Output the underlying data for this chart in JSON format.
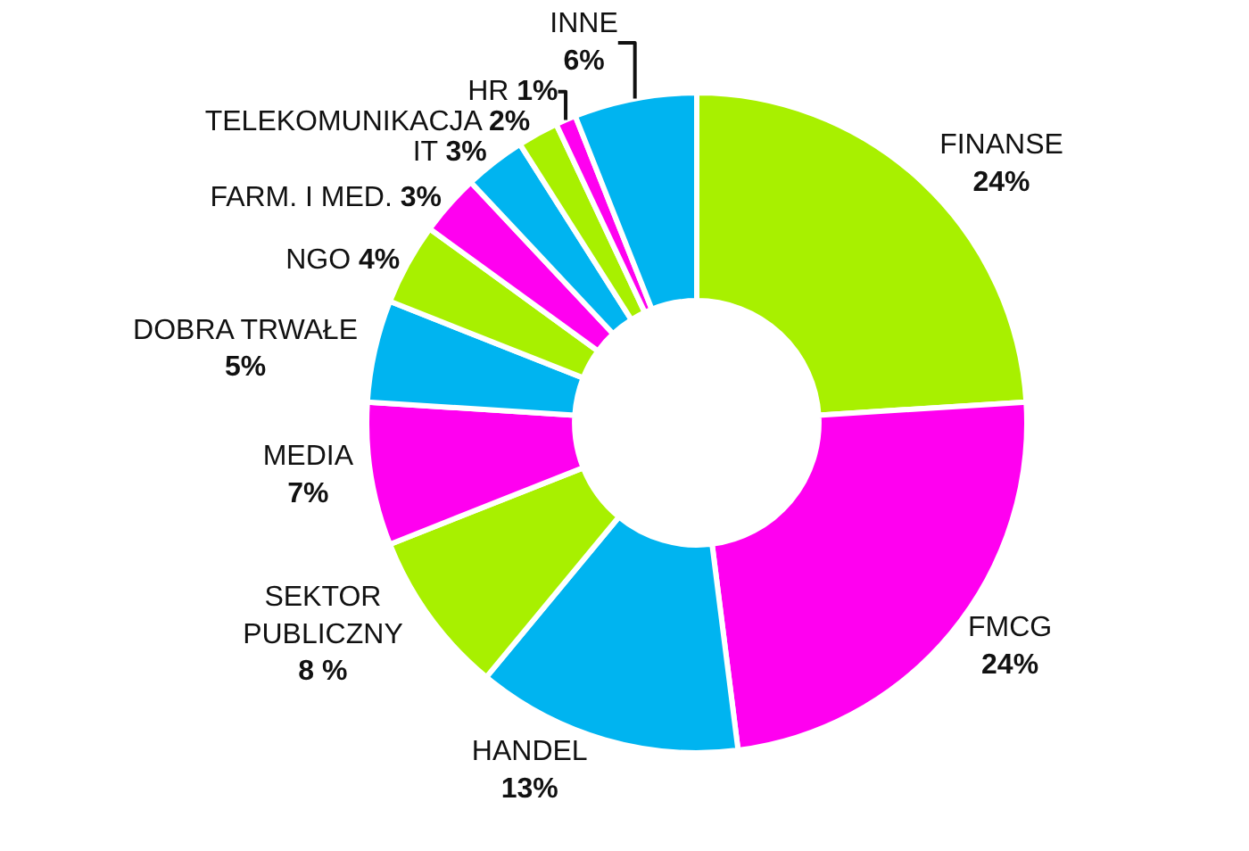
{
  "chart_data": {
    "type": "donut",
    "categories": [
      "FINANSE",
      "FMCG",
      "HANDEL",
      "SEKTOR PUBLICZNY",
      "MEDIA",
      "DOBRA TRWAŁE",
      "NGO",
      "FARM. I MED.",
      "IT",
      "TELEKOMUNIKACJA",
      "HR",
      "INNE"
    ],
    "values": [
      24,
      24,
      13,
      8,
      7,
      5,
      4,
      3,
      3,
      2,
      1,
      6
    ],
    "value_labels": [
      "24%",
      "24%",
      "13%",
      "8 %",
      "7%",
      "5%",
      "4%",
      "3%",
      "3%",
      "2%",
      "1%",
      "6%"
    ],
    "colors": [
      "#a8f000",
      "#ff00f0",
      "#00b4f0",
      "#a8f000",
      "#ff00f0",
      "#00b4f0",
      "#a8f000",
      "#ff00f0",
      "#00b4f0",
      "#a8f000",
      "#ff00f0",
      "#00b4f0"
    ],
    "legend": false
  }
}
